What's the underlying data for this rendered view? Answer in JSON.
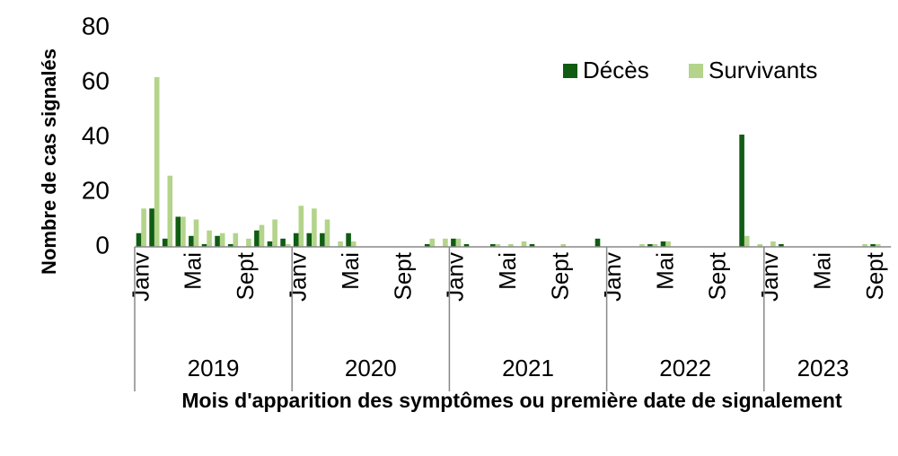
{
  "chart_data": {
    "type": "bar",
    "ylabel": "Nombre de cas signalés",
    "xlabel": "Mois d'apparition des symptômes ou première date de signalement",
    "ylim": [
      0,
      80
    ],
    "yticks": [
      0,
      20,
      40,
      60,
      80
    ],
    "legend_position": "upper right",
    "years": [
      "2019",
      "2020",
      "2021",
      "2022",
      "2023"
    ],
    "categories": [
      "Janv",
      null,
      null,
      null,
      "Mai",
      null,
      null,
      null,
      "Sept",
      null,
      null,
      null,
      "Janv",
      null,
      null,
      null,
      "Mai",
      null,
      null,
      null,
      "Sept",
      null,
      null,
      null,
      "Janv",
      null,
      null,
      null,
      "Mai",
      null,
      null,
      null,
      "Sept",
      null,
      null,
      null,
      "Janv",
      null,
      null,
      null,
      "Mai",
      null,
      null,
      null,
      "Sept",
      null,
      null,
      null,
      "Janv",
      null,
      null,
      null,
      "Mai",
      null,
      null,
      null,
      "Sept"
    ],
    "series": [
      {
        "name": "Décès",
        "color": "#0f5c12",
        "values": [
          5,
          14,
          3,
          11,
          4,
          1,
          4,
          1,
          0,
          6,
          2,
          3,
          5,
          5,
          5,
          0,
          5,
          0,
          0,
          0,
          0,
          0,
          1,
          0,
          3,
          1,
          0,
          1,
          0,
          0,
          1,
          0,
          0,
          0,
          0,
          3,
          0,
          0,
          0,
          1,
          2,
          0,
          0,
          0,
          0,
          0,
          41,
          0,
          0,
          1,
          0,
          0,
          0,
          0,
          0,
          0,
          1
        ]
      },
      {
        "name": "Survivants",
        "color": "#b3d48a",
        "values": [
          14,
          62,
          26,
          11,
          10,
          6,
          5,
          5,
          3,
          8,
          10,
          1,
          15,
          14,
          10,
          2,
          2,
          0,
          0,
          0,
          0,
          0,
          3,
          3,
          3,
          0,
          0,
          1,
          1,
          2,
          0,
          0,
          1,
          0,
          0,
          0,
          0,
          0,
          1,
          1,
          2,
          0,
          0,
          0,
          0,
          0,
          4,
          1,
          2,
          0,
          0,
          0,
          0,
          0,
          0,
          1,
          1
        ]
      }
    ]
  }
}
